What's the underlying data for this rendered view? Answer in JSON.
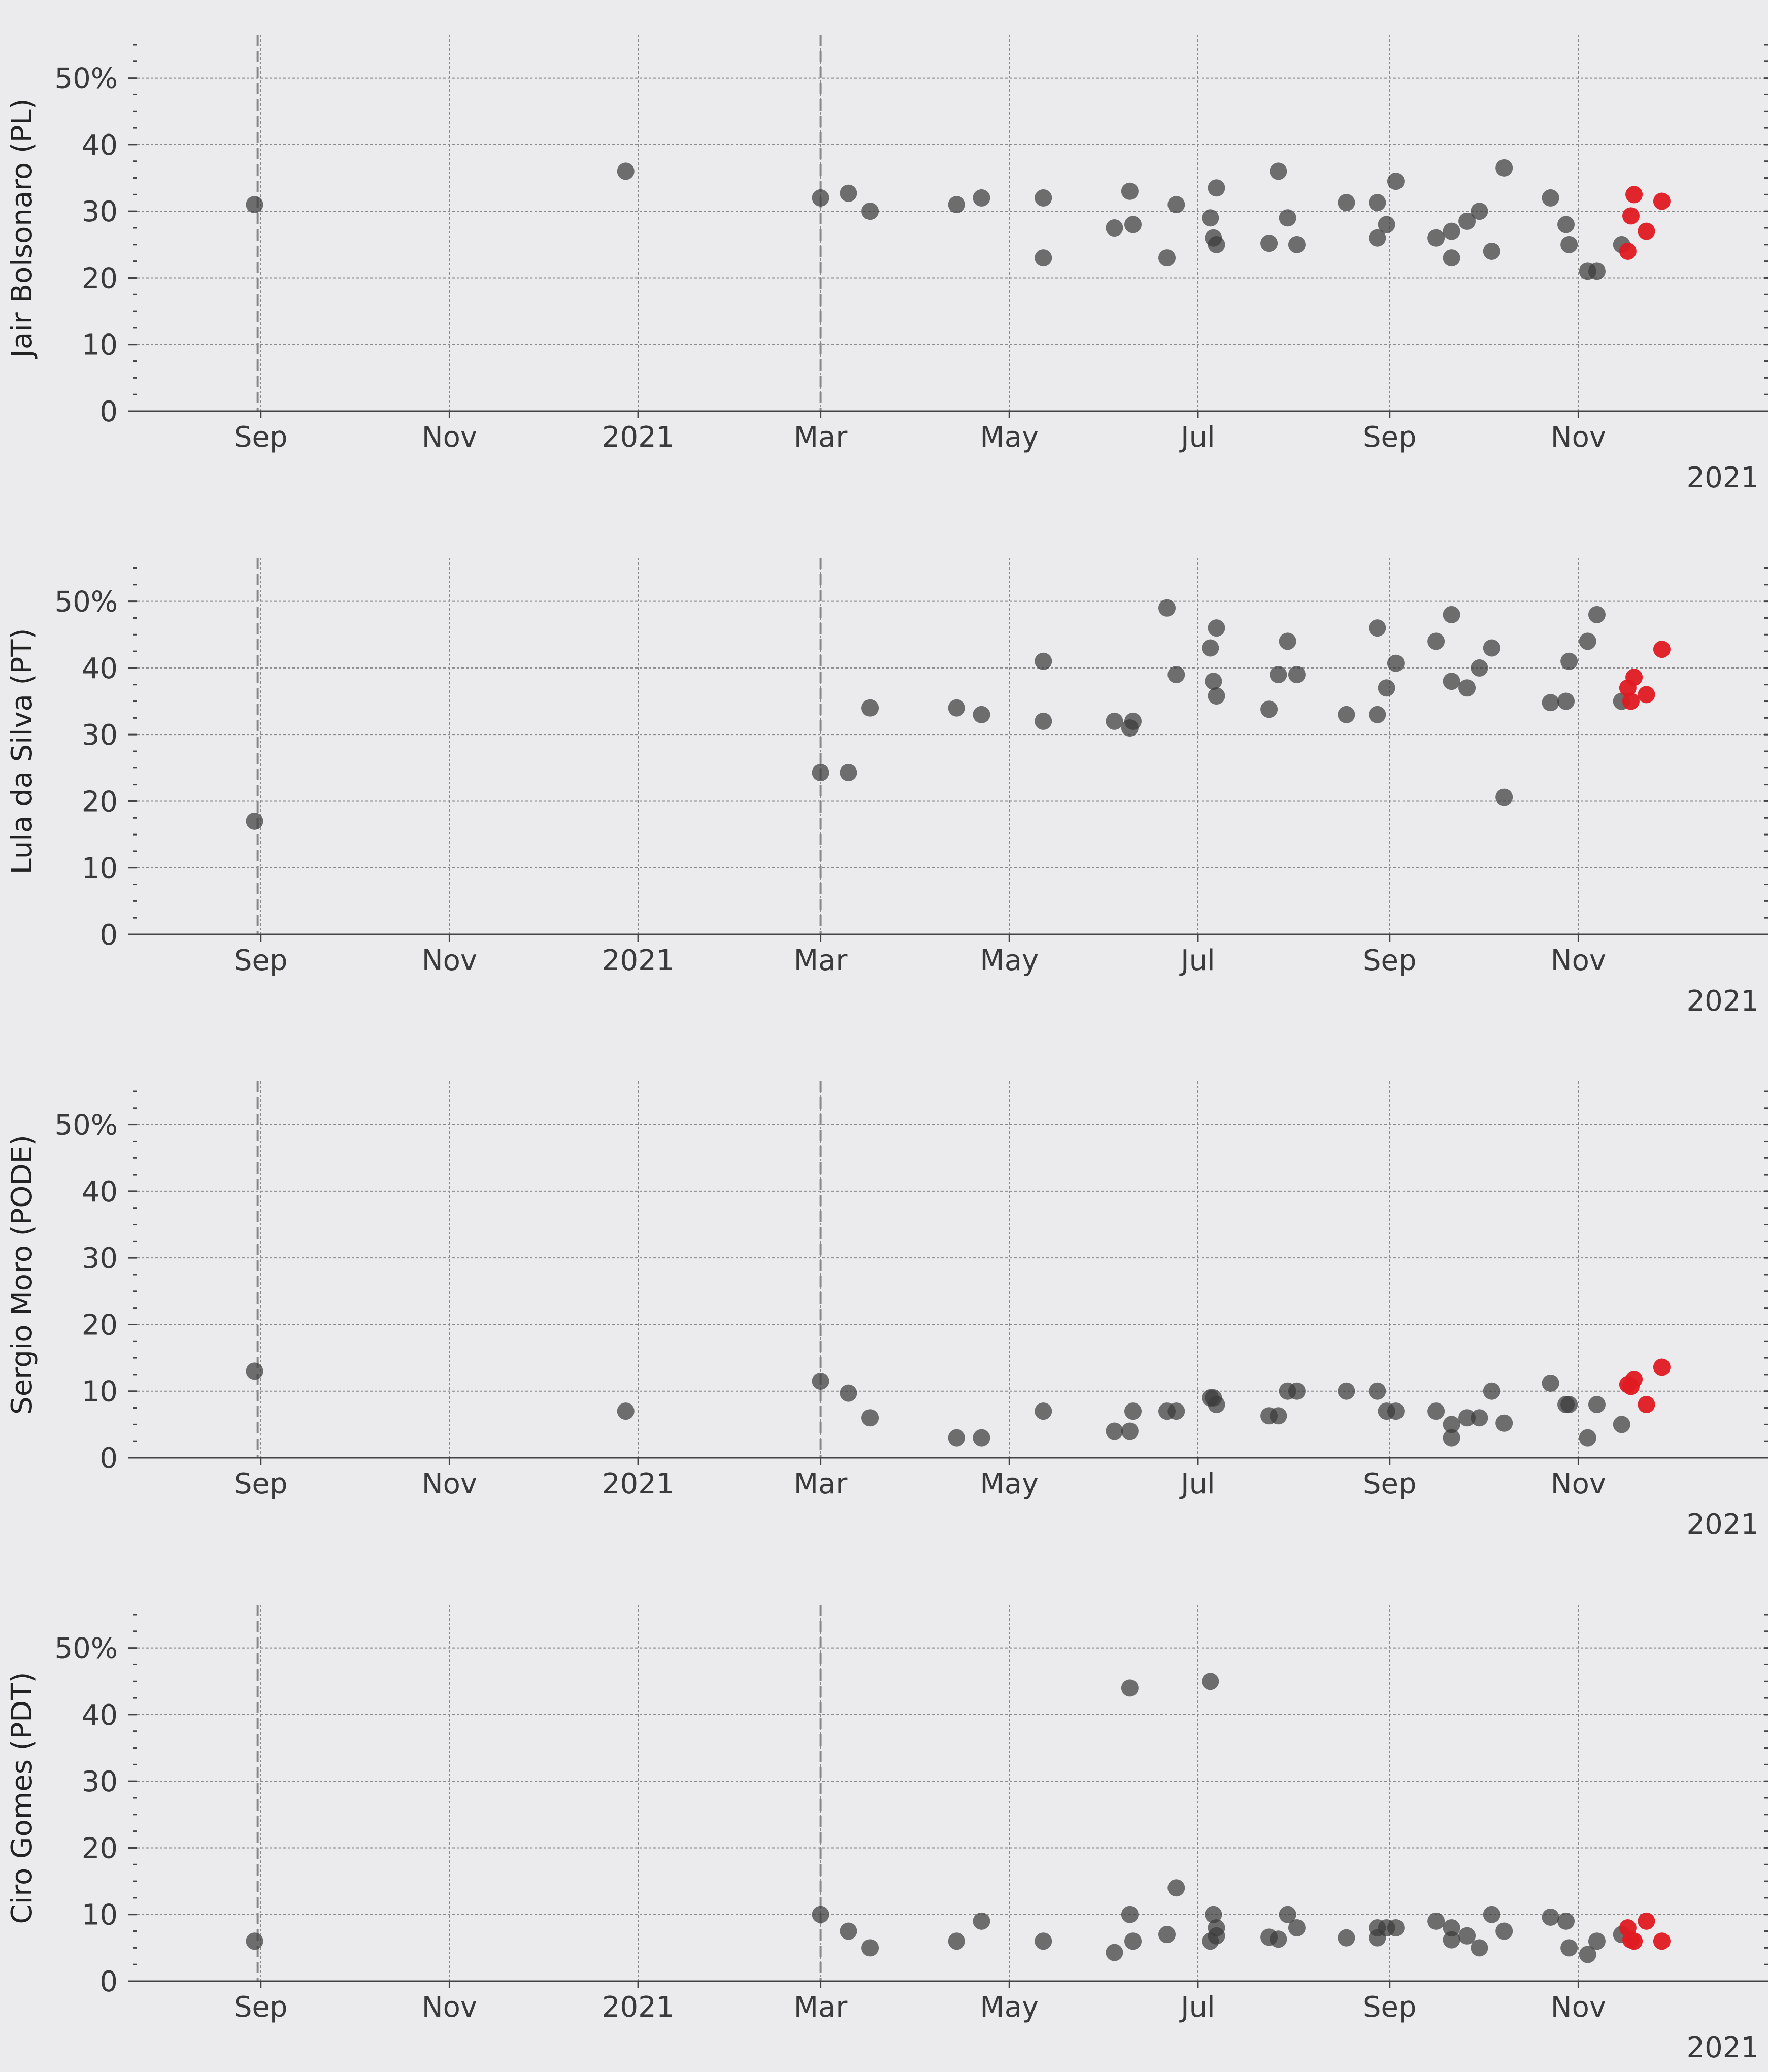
{
  "colors": {
    "background": "#ebebed",
    "poll_dot": "#3c3c3c",
    "recent_dot": "#e01a22",
    "event_line": "#888888"
  },
  "chart_data": {
    "type": "scatter",
    "x_unit": "date",
    "xlim": [
      "2020-07-23",
      "2021-12-31"
    ],
    "ylim": [
      0,
      55
    ],
    "y_ticks": [
      0,
      10,
      20,
      30,
      40,
      50
    ],
    "y_tick_labels": [
      "0",
      "10",
      "20",
      "30",
      "40",
      "50%"
    ],
    "x_ticks": [
      {
        "date": "2020-09-01",
        "label": "Sep"
      },
      {
        "date": "2020-11-01",
        "label": "Nov"
      },
      {
        "date": "2021-01-01",
        "label": "2021"
      },
      {
        "date": "2021-03-01",
        "label": "Mar"
      },
      {
        "date": "2021-05-01",
        "label": "May"
      },
      {
        "date": "2021-07-01",
        "label": "Jul"
      },
      {
        "date": "2021-09-01",
        "label": "Sep"
      },
      {
        "date": "2021-11-01",
        "label": "Nov"
      }
    ],
    "year_label": "2021",
    "event_lines": [
      "2020-08-31",
      "2021-03-01"
    ],
    "grid": true,
    "panels": [
      {
        "ylabel": "Jair Bolsonaro (PL)",
        "points": [
          {
            "x": "2020-08-30",
            "y": 31
          },
          {
            "x": "2020-12-28",
            "y": 36
          },
          {
            "x": "2021-03-01",
            "y": 32
          },
          {
            "x": "2021-03-10",
            "y": 32.7
          },
          {
            "x": "2021-03-17",
            "y": 30
          },
          {
            "x": "2021-04-14",
            "y": 31
          },
          {
            "x": "2021-04-22",
            "y": 32
          },
          {
            "x": "2021-05-12",
            "y": 32
          },
          {
            "x": "2021-05-12",
            "y": 23
          },
          {
            "x": "2021-06-04",
            "y": 27.5
          },
          {
            "x": "2021-06-09",
            "y": 33
          },
          {
            "x": "2021-06-10",
            "y": 28
          },
          {
            "x": "2021-06-21",
            "y": 23
          },
          {
            "x": "2021-06-24",
            "y": 31
          },
          {
            "x": "2021-07-05",
            "y": 29
          },
          {
            "x": "2021-07-06",
            "y": 26
          },
          {
            "x": "2021-07-07",
            "y": 33.5
          },
          {
            "x": "2021-07-07",
            "y": 25
          },
          {
            "x": "2021-07-24",
            "y": 25.2
          },
          {
            "x": "2021-07-27",
            "y": 36
          },
          {
            "x": "2021-07-30",
            "y": 29
          },
          {
            "x": "2021-08-02",
            "y": 25
          },
          {
            "x": "2021-08-18",
            "y": 31.3
          },
          {
            "x": "2021-08-28",
            "y": 26
          },
          {
            "x": "2021-08-28",
            "y": 31.3
          },
          {
            "x": "2021-08-31",
            "y": 28
          },
          {
            "x": "2021-09-03",
            "y": 34.5
          },
          {
            "x": "2021-09-16",
            "y": 26
          },
          {
            "x": "2021-09-21",
            "y": 27
          },
          {
            "x": "2021-09-21",
            "y": 23
          },
          {
            "x": "2021-09-26",
            "y": 28.5
          },
          {
            "x": "2021-09-30",
            "y": 30
          },
          {
            "x": "2021-10-04",
            "y": 24
          },
          {
            "x": "2021-10-08",
            "y": 36.5
          },
          {
            "x": "2021-10-23",
            "y": 32
          },
          {
            "x": "2021-10-28",
            "y": 28
          },
          {
            "x": "2021-10-29",
            "y": 25
          },
          {
            "x": "2021-11-04",
            "y": 21
          },
          {
            "x": "2021-11-07",
            "y": 21
          },
          {
            "x": "2021-11-15",
            "y": 25
          }
        ],
        "recent_points": [
          {
            "x": "2021-11-17",
            "y": 24
          },
          {
            "x": "2021-11-18",
            "y": 29.3
          },
          {
            "x": "2021-11-19",
            "y": 32.5
          },
          {
            "x": "2021-11-23",
            "y": 27
          },
          {
            "x": "2021-11-28",
            "y": 31.5
          }
        ]
      },
      {
        "ylabel": "Lula da Silva (PT)",
        "points": [
          {
            "x": "2020-08-30",
            "y": 17
          },
          {
            "x": "2021-03-01",
            "y": 24.3
          },
          {
            "x": "2021-03-10",
            "y": 24.3
          },
          {
            "x": "2021-03-17",
            "y": 34
          },
          {
            "x": "2021-04-14",
            "y": 34
          },
          {
            "x": "2021-04-22",
            "y": 33
          },
          {
            "x": "2021-05-12",
            "y": 41
          },
          {
            "x": "2021-05-12",
            "y": 32
          },
          {
            "x": "2021-06-04",
            "y": 32
          },
          {
            "x": "2021-06-09",
            "y": 31
          },
          {
            "x": "2021-06-10",
            "y": 32
          },
          {
            "x": "2021-06-21",
            "y": 49
          },
          {
            "x": "2021-06-24",
            "y": 39
          },
          {
            "x": "2021-07-05",
            "y": 43
          },
          {
            "x": "2021-07-06",
            "y": 38
          },
          {
            "x": "2021-07-07",
            "y": 46
          },
          {
            "x": "2021-07-07",
            "y": 35.8
          },
          {
            "x": "2021-07-24",
            "y": 33.8
          },
          {
            "x": "2021-07-27",
            "y": 39
          },
          {
            "x": "2021-07-30",
            "y": 44
          },
          {
            "x": "2021-08-02",
            "y": 39
          },
          {
            "x": "2021-08-18",
            "y": 33
          },
          {
            "x": "2021-08-28",
            "y": 46
          },
          {
            "x": "2021-08-28",
            "y": 33
          },
          {
            "x": "2021-08-31",
            "y": 37
          },
          {
            "x": "2021-09-03",
            "y": 40.7
          },
          {
            "x": "2021-09-16",
            "y": 44
          },
          {
            "x": "2021-09-21",
            "y": 48
          },
          {
            "x": "2021-09-21",
            "y": 38
          },
          {
            "x": "2021-09-26",
            "y": 37
          },
          {
            "x": "2021-09-30",
            "y": 40
          },
          {
            "x": "2021-10-04",
            "y": 43
          },
          {
            "x": "2021-10-08",
            "y": 20.6
          },
          {
            "x": "2021-10-23",
            "y": 34.8
          },
          {
            "x": "2021-10-28",
            "y": 35
          },
          {
            "x": "2021-10-29",
            "y": 41
          },
          {
            "x": "2021-11-04",
            "y": 44
          },
          {
            "x": "2021-11-07",
            "y": 48
          },
          {
            "x": "2021-11-15",
            "y": 35
          }
        ],
        "recent_points": [
          {
            "x": "2021-11-17",
            "y": 37
          },
          {
            "x": "2021-11-18",
            "y": 35
          },
          {
            "x": "2021-11-19",
            "y": 38.6
          },
          {
            "x": "2021-11-23",
            "y": 36
          },
          {
            "x": "2021-11-28",
            "y": 42.8
          }
        ]
      },
      {
        "ylabel": "Sergio Moro (PODE)",
        "points": [
          {
            "x": "2020-08-30",
            "y": 13
          },
          {
            "x": "2020-12-28",
            "y": 7
          },
          {
            "x": "2021-03-01",
            "y": 11.5
          },
          {
            "x": "2021-03-10",
            "y": 9.7
          },
          {
            "x": "2021-03-17",
            "y": 6
          },
          {
            "x": "2021-04-14",
            "y": 3
          },
          {
            "x": "2021-04-22",
            "y": 3
          },
          {
            "x": "2021-05-12",
            "y": 7
          },
          {
            "x": "2021-06-04",
            "y": 4
          },
          {
            "x": "2021-06-09",
            "y": 4
          },
          {
            "x": "2021-06-10",
            "y": 7
          },
          {
            "x": "2021-06-21",
            "y": 7
          },
          {
            "x": "2021-06-24",
            "y": 7
          },
          {
            "x": "2021-07-05",
            "y": 9
          },
          {
            "x": "2021-07-06",
            "y": 9
          },
          {
            "x": "2021-07-07",
            "y": 8
          },
          {
            "x": "2021-07-24",
            "y": 6.3
          },
          {
            "x": "2021-07-27",
            "y": 6.3
          },
          {
            "x": "2021-07-30",
            "y": 10
          },
          {
            "x": "2021-08-02",
            "y": 10
          },
          {
            "x": "2021-08-18",
            "y": 10
          },
          {
            "x": "2021-08-28",
            "y": 10
          },
          {
            "x": "2021-08-31",
            "y": 7
          },
          {
            "x": "2021-09-03",
            "y": 7
          },
          {
            "x": "2021-09-16",
            "y": 7
          },
          {
            "x": "2021-09-21",
            "y": 5
          },
          {
            "x": "2021-09-21",
            "y": 3
          },
          {
            "x": "2021-09-26",
            "y": 6
          },
          {
            "x": "2021-09-30",
            "y": 6
          },
          {
            "x": "2021-10-04",
            "y": 10
          },
          {
            "x": "2021-10-08",
            "y": 5.2
          },
          {
            "x": "2021-10-23",
            "y": 11.2
          },
          {
            "x": "2021-10-28",
            "y": 8
          },
          {
            "x": "2021-10-29",
            "y": 8
          },
          {
            "x": "2021-11-04",
            "y": 3
          },
          {
            "x": "2021-11-07",
            "y": 8
          },
          {
            "x": "2021-11-15",
            "y": 5
          }
        ],
        "recent_points": [
          {
            "x": "2021-11-17",
            "y": 11
          },
          {
            "x": "2021-11-18",
            "y": 10.7
          },
          {
            "x": "2021-11-19",
            "y": 11.8
          },
          {
            "x": "2021-11-23",
            "y": 8
          },
          {
            "x": "2021-11-28",
            "y": 13.6
          }
        ]
      },
      {
        "ylabel": "Ciro Gomes (PDT)",
        "points": [
          {
            "x": "2020-08-30",
            "y": 6
          },
          {
            "x": "2021-03-01",
            "y": 10
          },
          {
            "x": "2021-03-10",
            "y": 7.5
          },
          {
            "x": "2021-03-17",
            "y": 5
          },
          {
            "x": "2021-04-14",
            "y": 6
          },
          {
            "x": "2021-04-22",
            "y": 9
          },
          {
            "x": "2021-05-12",
            "y": 6
          },
          {
            "x": "2021-06-04",
            "y": 4.3
          },
          {
            "x": "2021-06-09",
            "y": 44
          },
          {
            "x": "2021-06-09",
            "y": 10
          },
          {
            "x": "2021-06-10",
            "y": 6
          },
          {
            "x": "2021-06-21",
            "y": 7
          },
          {
            "x": "2021-06-24",
            "y": 14
          },
          {
            "x": "2021-07-05",
            "y": 45
          },
          {
            "x": "2021-07-05",
            "y": 6
          },
          {
            "x": "2021-07-06",
            "y": 10
          },
          {
            "x": "2021-07-07",
            "y": 8
          },
          {
            "x": "2021-07-07",
            "y": 6.8
          },
          {
            "x": "2021-07-24",
            "y": 6.6
          },
          {
            "x": "2021-07-27",
            "y": 6.3
          },
          {
            "x": "2021-07-30",
            "y": 10
          },
          {
            "x": "2021-08-02",
            "y": 8
          },
          {
            "x": "2021-08-18",
            "y": 6.5
          },
          {
            "x": "2021-08-28",
            "y": 8
          },
          {
            "x": "2021-08-28",
            "y": 6.5
          },
          {
            "x": "2021-08-31",
            "y": 8
          },
          {
            "x": "2021-09-03",
            "y": 8
          },
          {
            "x": "2021-09-16",
            "y": 9
          },
          {
            "x": "2021-09-21",
            "y": 8
          },
          {
            "x": "2021-09-21",
            "y": 6.2
          },
          {
            "x": "2021-09-26",
            "y": 6.8
          },
          {
            "x": "2021-09-30",
            "y": 5
          },
          {
            "x": "2021-10-04",
            "y": 10
          },
          {
            "x": "2021-10-08",
            "y": 7.5
          },
          {
            "x": "2021-10-23",
            "y": 9.6
          },
          {
            "x": "2021-10-28",
            "y": 9
          },
          {
            "x": "2021-10-29",
            "y": 5
          },
          {
            "x": "2021-11-04",
            "y": 4
          },
          {
            "x": "2021-11-07",
            "y": 6
          },
          {
            "x": "2021-11-15",
            "y": 7
          }
        ],
        "recent_points": [
          {
            "x": "2021-11-17",
            "y": 8
          },
          {
            "x": "2021-11-18",
            "y": 6.2
          },
          {
            "x": "2021-11-19",
            "y": 6
          },
          {
            "x": "2021-11-23",
            "y": 9
          },
          {
            "x": "2021-11-28",
            "y": 6
          }
        ]
      }
    ]
  }
}
